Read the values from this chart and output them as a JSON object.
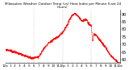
{
  "title": "Milwaukee Weather Outdoor Temp (vs) Heat Index per Minute (Last 24 Hours)",
  "line_color": "#ff0000",
  "bg_color": "#ffffff",
  "plot_bg_color": "#ffffff",
  "grid_color": "#888888",
  "ylim": [
    58,
    93
  ],
  "ylabel_fontsize": 3.5,
  "xlabel_fontsize": 3.0,
  "title_fontsize": 3.0,
  "vlines": [
    360,
    720,
    1080
  ],
  "xlabel_values": [
    "12a",
    "1",
    "2",
    "3",
    "4",
    "5",
    "6",
    "7",
    "8",
    "9",
    "10",
    "11",
    "12p",
    "1",
    "2",
    "3",
    "4",
    "5",
    "6",
    "7",
    "8",
    "9",
    "10",
    "11",
    "12a"
  ]
}
